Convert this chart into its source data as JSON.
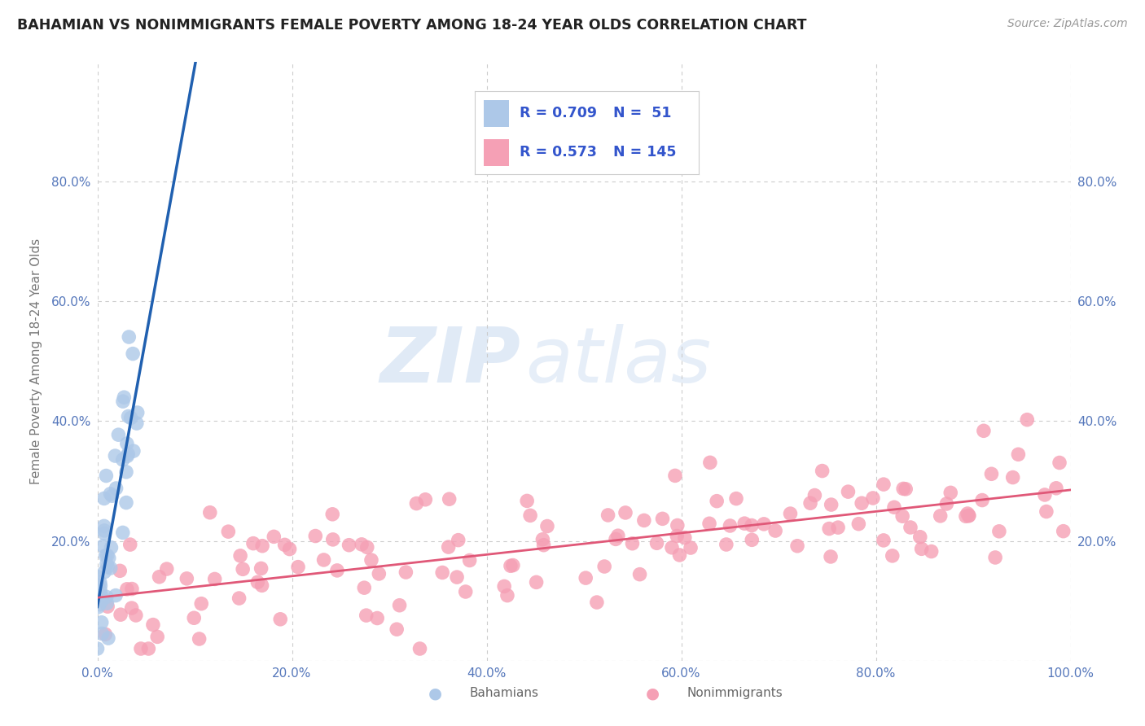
{
  "title": "BAHAMIAN VS NONIMMIGRANTS FEMALE POVERTY AMONG 18-24 YEAR OLDS CORRELATION CHART",
  "source": "Source: ZipAtlas.com",
  "ylabel": "Female Poverty Among 18-24 Year Olds",
  "bahamian_R": 0.709,
  "bahamian_N": 51,
  "nonimmigrant_R": 0.573,
  "nonimmigrant_N": 145,
  "bahamian_color": "#adc8e8",
  "bahamian_line_color": "#2060b0",
  "nonimmigrant_color": "#f5a0b5",
  "nonimmigrant_line_color": "#e05878",
  "background_color": "#ffffff",
  "grid_color": "#cccccc",
  "watermark_zip": "ZIP",
  "watermark_atlas": "atlas",
  "xlim": [
    0,
    1.0
  ],
  "ylim": [
    0,
    1.0
  ],
  "xticks": [
    0.0,
    0.2,
    0.4,
    0.6,
    0.8,
    1.0
  ],
  "yticks": [
    0.0,
    0.2,
    0.4,
    0.6,
    0.8
  ],
  "xticklabels": [
    "0.0%",
    "20.0%",
    "40.0%",
    "60.0%",
    "80.0%",
    "100.0%"
  ],
  "yticklabels_left": [
    "",
    "20.0%",
    "40.0%",
    "60.0%",
    "80.0%"
  ],
  "yticklabels_right": [
    "",
    "20.0%",
    "40.0%",
    "60.0%",
    "80.0%"
  ],
  "tick_color": "#5577bb",
  "legend_R_color": "#3355cc"
}
